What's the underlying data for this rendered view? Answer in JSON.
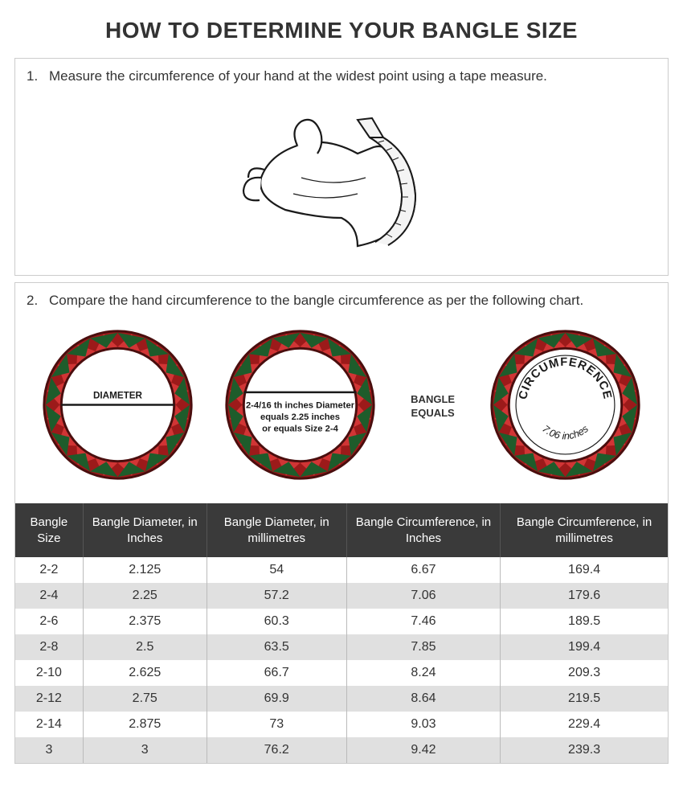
{
  "title": "HOW TO DETERMINE YOUR BANGLE SIZE",
  "step1": {
    "num": "1.",
    "text": "Measure the circumference of your hand at the widest point using a tape measure."
  },
  "step2": {
    "num": "2.",
    "text": "Compare the hand circumference to the bangle circumference as per the following chart."
  },
  "bangle_graphic": {
    "ring_outer_color": "#9c1a1a",
    "ring_pattern_red": "#d13535",
    "ring_pattern_green": "#1e5c2b",
    "line_color": "#1a1a1a",
    "text_color": "#1a1a1a",
    "circle1_label": "DIAMETER",
    "circle2_line1": "2-4/16 th inches Diameter",
    "circle2_line2": "equals 2.25 inches",
    "circle2_line3": "or equals Size 2-4",
    "circle3_top": "CIRCUMFERENCE",
    "circle3_bottom": "7.06 inches",
    "equals_label": "BANGLE EQUALS"
  },
  "table": {
    "header_bg": "#3a3a3a",
    "header_text_color": "#ffffff",
    "row_alt_bg": "#e0e0e0",
    "columns": [
      "Bangle Size",
      "Bangle Diameter, in Inches",
      "Bangle Diameter, in millimetres",
      "Bangle Circumference, in Inches",
      "Bangle Circumference, in millimetres"
    ],
    "rows": [
      [
        "2-2",
        "2.125",
        "54",
        "6.67",
        "169.4"
      ],
      [
        "2-4",
        "2.25",
        "57.2",
        "7.06",
        "179.6"
      ],
      [
        "2-6",
        "2.375",
        "60.3",
        "7.46",
        "189.5"
      ],
      [
        "2-8",
        "2.5",
        "63.5",
        "7.85",
        "199.4"
      ],
      [
        "2-10",
        "2.625",
        "66.7",
        "8.24",
        "209.3"
      ],
      [
        "2-12",
        "2.75",
        "69.9",
        "8.64",
        "219.5"
      ],
      [
        "2-14",
        "2.875",
        "73",
        "9.03",
        "229.4"
      ],
      [
        "3",
        "3",
        "76.2",
        "9.42",
        "239.3"
      ]
    ]
  }
}
